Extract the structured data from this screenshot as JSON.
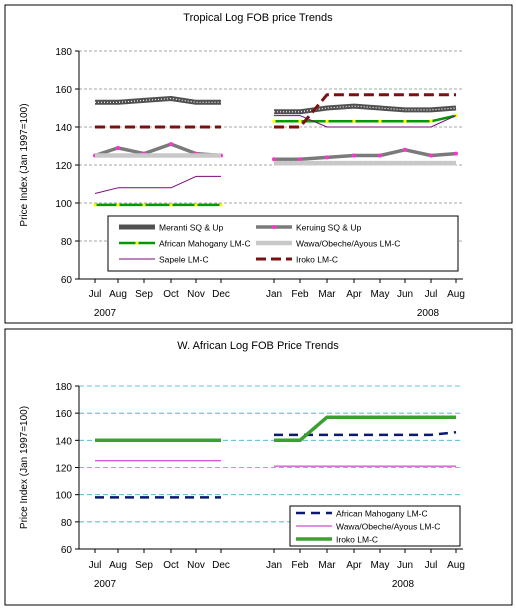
{
  "chart_data": [
    {
      "type": "line",
      "title": "Tropical Log FOB price Trends",
      "ylabel": "Price Index (Jan 1997=100)",
      "ylim": [
        60,
        180
      ],
      "yticks": [
        60,
        80,
        100,
        120,
        140,
        160,
        180
      ],
      "grid": "horizontal dashed",
      "x": [
        "Jul",
        "Aug",
        "Sep",
        "Oct",
        "Nov",
        "Dec",
        "Jan",
        "Feb",
        "Mar",
        "Apr",
        "May",
        "Jun",
        "Jul",
        "Aug"
      ],
      "year_labels": [
        "2007",
        "2008"
      ],
      "legend": "inside-bottom",
      "series": [
        {
          "name": "Meranti SQ & Up",
          "color": "#505050",
          "style": "thick-dotted",
          "values": [
            153,
            153,
            154,
            155,
            153,
            153,
            148,
            148,
            150,
            151,
            150,
            149,
            149,
            150
          ]
        },
        {
          "name": "Keruing SQ & Up",
          "color": "#7a7a7a",
          "style": "thick-markers",
          "values": [
            125,
            129,
            126,
            131,
            126,
            125,
            123,
            123,
            124,
            125,
            125,
            128,
            125,
            126
          ]
        },
        {
          "name": "African Mahogany LM-C",
          "color": "#009900",
          "style": "solid-yellow-markers",
          "values": [
            99,
            99,
            99,
            99,
            99,
            99,
            143,
            143,
            143,
            143,
            143,
            143,
            143,
            146
          ]
        },
        {
          "name": "Wawa/Obeche/Ayous LM-C",
          "color": "#c8c8c8",
          "style": "thick",
          "values": [
            125,
            125,
            125,
            125,
            125,
            125,
            121,
            121,
            121,
            121,
            121,
            121,
            121,
            121
          ]
        },
        {
          "name": "Sapele LM-C",
          "color": "#7a0a7a",
          "style": "thin",
          "values": [
            105,
            108,
            108,
            108,
            114,
            114,
            146,
            146,
            140,
            140,
            140,
            140,
            140,
            146
          ]
        },
        {
          "name": "Iroko LM-C",
          "color": "#7a1010",
          "style": "dashed",
          "values": [
            140,
            140,
            140,
            140,
            140,
            140,
            140,
            140,
            157,
            157,
            157,
            157,
            157,
            157
          ]
        }
      ]
    },
    {
      "type": "line",
      "title": "W. African Log FOB Price Trends",
      "ylabel": "Price Index (Jan 1997=100)",
      "ylim": [
        60,
        180
      ],
      "yticks": [
        60,
        80,
        100,
        120,
        140,
        160,
        180
      ],
      "grid": "horizontal dashed",
      "x": [
        "Jul",
        "Aug",
        "Sep",
        "Oct",
        "Nov",
        "Dec",
        "Jan",
        "Feb",
        "Mar",
        "Apr",
        "May",
        "Jun",
        "Jul",
        "Aug"
      ],
      "year_labels": [
        "2007",
        "2008"
      ],
      "legend": "inside-bottom-right",
      "series": [
        {
          "name": "African Mahogany LM-C",
          "color": "#0a1a6e",
          "style": "dashed",
          "values": [
            98,
            98,
            98,
            98,
            98,
            98,
            144,
            144,
            144,
            144,
            144,
            144,
            144,
            146
          ]
        },
        {
          "name": "Wawa/Obeche/Ayous LM-C",
          "color": "#c020c0",
          "style": "thin",
          "values": [
            125,
            125,
            125,
            125,
            125,
            125,
            121,
            121,
            121,
            121,
            121,
            121,
            121,
            121
          ]
        },
        {
          "name": "Iroko LM-C",
          "color": "#3aa030",
          "style": "thick",
          "values": [
            140,
            140,
            140,
            140,
            140,
            140,
            140,
            140,
            157,
            157,
            157,
            157,
            157,
            157
          ]
        }
      ]
    }
  ]
}
